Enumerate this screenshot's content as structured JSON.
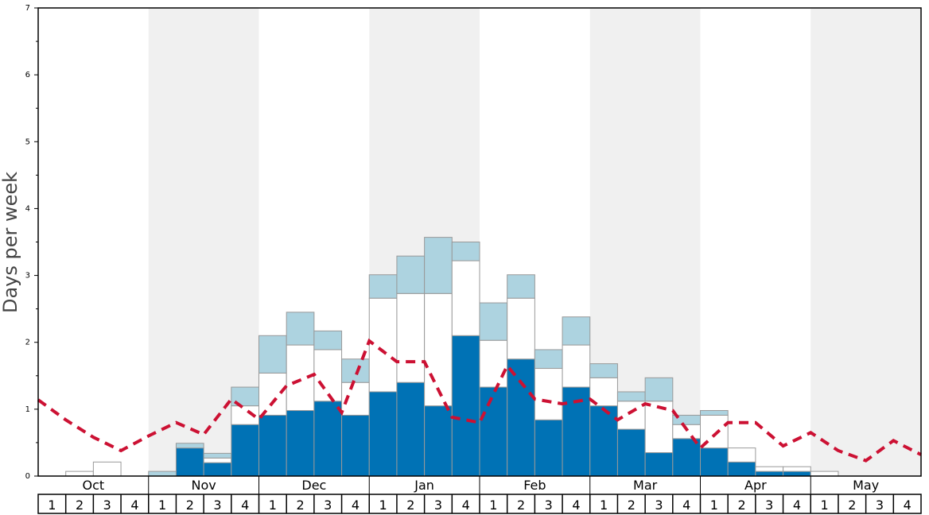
{
  "chart_data": {
    "type": "bar",
    "ylabel": "Days per week",
    "ylim": [
      0,
      7
    ],
    "yticks": [
      0,
      1,
      2,
      3,
      4,
      5,
      6,
      7
    ],
    "months": [
      "Oct",
      "Nov",
      "Dec",
      "Jan",
      "Feb",
      "Mar",
      "Apr",
      "May"
    ],
    "weeks": [
      "1",
      "2",
      "3",
      "4"
    ],
    "colors": {
      "dark": "#0072b5",
      "white": "#ffffff",
      "light": "#add3e0",
      "line": "#cc1133",
      "shade": "#f0f0f0"
    },
    "series": [
      {
        "values": [
          0,
          0,
          0,
          0,
          0,
          0.42,
          0.2,
          0.77,
          0.91,
          0.98,
          1.12,
          0.91,
          1.26,
          1.4,
          1.05,
          2.1,
          1.33,
          1.75,
          0.84,
          1.33,
          1.05,
          0.7,
          0.35,
          0.56,
          0.42,
          0.21,
          0.07,
          0.07,
          0,
          0,
          0,
          0
        ]
      },
      {
        "values": [
          0,
          0.07,
          0.21,
          0,
          0,
          0,
          0.07,
          0.28,
          0.63,
          0.98,
          0.77,
          0.49,
          1.4,
          1.33,
          1.68,
          1.12,
          0.7,
          0.91,
          0.77,
          0.63,
          0.42,
          0.42,
          0.77,
          0.21,
          0.49,
          0.21,
          0.07,
          0.07,
          0.07,
          0,
          0,
          0
        ]
      },
      {
        "values": [
          0,
          0,
          0,
          0,
          0.07,
          0.07,
          0.07,
          0.28,
          0.56,
          0.49,
          0.28,
          0.35,
          0.35,
          0.56,
          0.84,
          0.28,
          0.56,
          0.35,
          0.28,
          0.42,
          0.21,
          0.14,
          0.35,
          0.14,
          0.07,
          0,
          0,
          0,
          0,
          0,
          0,
          0
        ]
      }
    ],
    "trend": {
      "x": [
        0,
        1,
        2,
        3,
        4,
        5,
        6,
        7,
        8,
        9,
        10,
        11,
        12,
        13,
        14,
        15,
        16,
        17,
        18,
        19,
        20,
        21,
        22,
        23,
        24,
        25,
        26,
        27,
        28,
        29,
        30,
        31,
        32
      ],
      "y": [
        1.14,
        0.84,
        0.58,
        0.38,
        0.6,
        0.8,
        0.62,
        1.15,
        0.85,
        1.35,
        1.52,
        0.95,
        2.02,
        1.71,
        1.71,
        0.88,
        0.8,
        1.65,
        1.15,
        1.08,
        1.15,
        0.84,
        1.08,
        0.98,
        0.42,
        0.8,
        0.8,
        0.45,
        0.65,
        0.38,
        0.23,
        0.53,
        0.32
      ]
    }
  }
}
